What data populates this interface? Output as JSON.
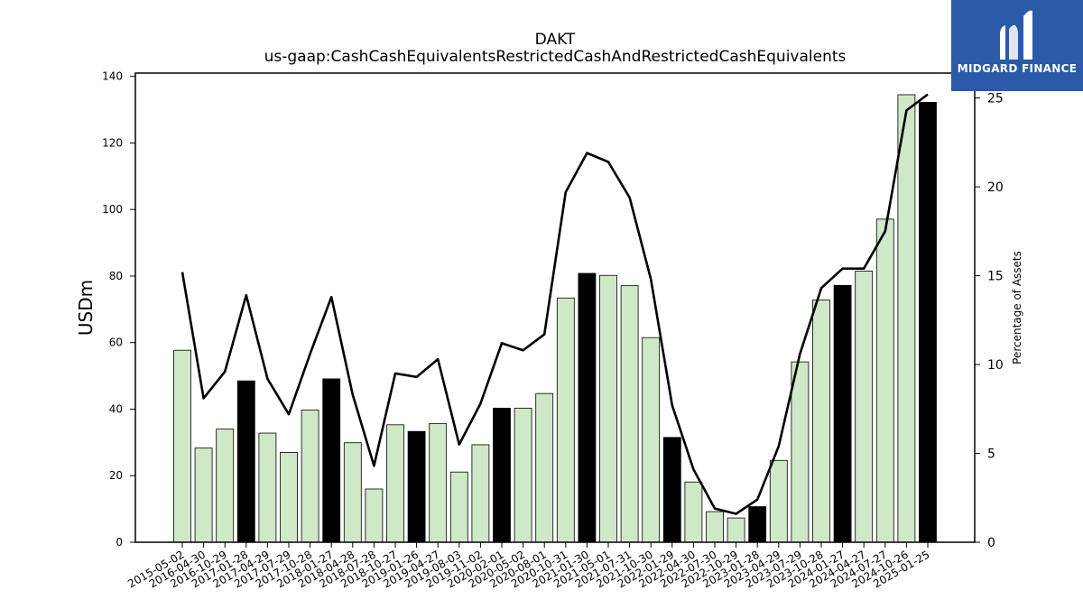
{
  "logo": {
    "text": "MIDGARD FINANCE",
    "background": "#2b5aa8"
  },
  "chart_data": {
    "type": "bar",
    "title": "DAKT",
    "subtitle": "us-gaap:CashCashEquivalentsRestrictedCashAndRestrictedCashEquivalents",
    "ylabel": "USDm",
    "y2label": "Percentage of Assets",
    "ylim": [
      0,
      141
    ],
    "y2lim": [
      0,
      26.4
    ],
    "yticks": [
      0,
      20,
      40,
      60,
      80,
      100,
      120,
      140
    ],
    "y2ticks": [
      0,
      5,
      10,
      15,
      20,
      25
    ],
    "categories": [
      "2015-05-02",
      "2016-04-30",
      "2016-10-29",
      "2017-01-28",
      "2017-04-29",
      "2017-07-29",
      "2017-10-28",
      "2018-01-27",
      "2018-04-28",
      "2018-07-28",
      "2018-10-27",
      "2019-01-26",
      "2019-04-27",
      "2019-08-03",
      "2019-11-02",
      "2020-02-01",
      "2020-05-02",
      "2020-08-01",
      "2020-10-31",
      "2021-01-30",
      "2021-05-01",
      "2021-07-31",
      "2021-10-30",
      "2022-01-29",
      "2022-04-30",
      "2022-07-30",
      "2022-10-29",
      "2023-01-28",
      "2023-04-29",
      "2023-07-29",
      "2023-10-28",
      "2024-01-27",
      "2024-04-27",
      "2024-07-27",
      "2024-10-26",
      "2025-01-25"
    ],
    "series": [
      {
        "kind": "bar",
        "values": [
          57.7,
          28.3,
          34.0,
          48.5,
          32.8,
          27.0,
          39.7,
          49.1,
          29.9,
          16.0,
          35.3,
          33.3,
          35.7,
          21.1,
          29.3,
          40.3,
          40.3,
          44.7,
          73.4,
          80.8,
          80.2,
          77.1,
          61.5,
          31.5,
          18.1,
          9.2,
          7.3,
          10.7,
          24.6,
          54.2,
          72.8,
          77.2,
          81.5,
          97.1,
          134.5,
          132.2
        ],
        "highlight": [
          false,
          false,
          false,
          true,
          false,
          false,
          false,
          true,
          false,
          false,
          false,
          true,
          false,
          false,
          false,
          true,
          false,
          false,
          false,
          true,
          false,
          false,
          false,
          true,
          false,
          false,
          false,
          true,
          false,
          false,
          false,
          true,
          false,
          false,
          false,
          true
        ],
        "color": "#cfe8c7",
        "highlight_color": "#000000"
      },
      {
        "kind": "line",
        "axis": "right",
        "values": [
          15.2,
          8.1,
          9.6,
          13.9,
          9.2,
          7.2,
          10.6,
          13.8,
          8.3,
          4.3,
          9.5,
          9.3,
          10.3,
          5.5,
          7.8,
          11.2,
          10.8,
          11.7,
          19.7,
          21.9,
          21.4,
          19.4,
          14.8,
          7.7,
          4.1,
          1.9,
          1.6,
          2.4,
          5.4,
          10.6,
          14.3,
          15.4,
          15.4,
          17.5,
          24.3,
          25.2
        ],
        "color": "#000000"
      }
    ]
  }
}
